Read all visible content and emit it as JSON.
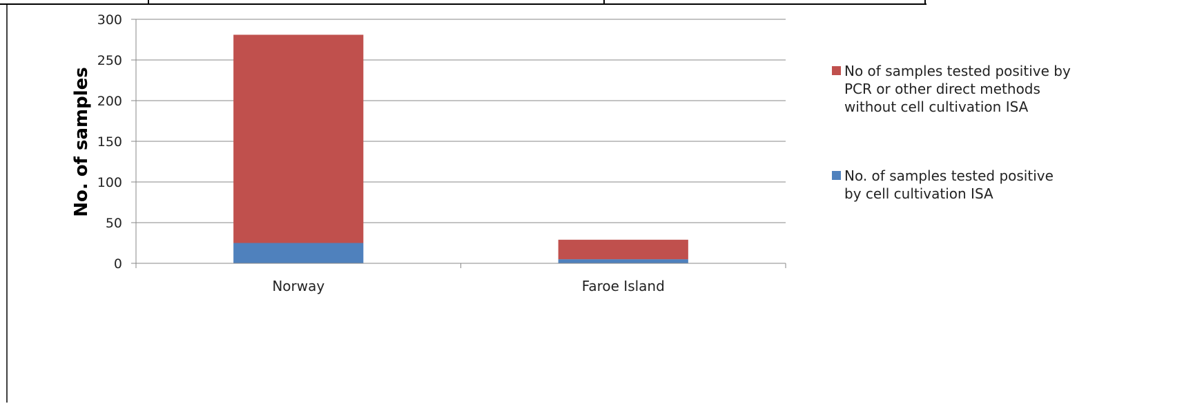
{
  "chart_data": {
    "type": "bar",
    "stacked": true,
    "categories": [
      "Norway",
      "Faroe Island"
    ],
    "series": [
      {
        "name": "No. of samples tested positive by cell cultivation ISA",
        "legend_lines": [
          "No. of samples tested positive",
          "by cell cultivation ISA"
        ],
        "color": "#4f81bd",
        "values": [
          25,
          5
        ]
      },
      {
        "name": "No of samples tested positive by PCR or other direct methods without cell cultivation ISA",
        "legend_lines": [
          "No of samples tested positive by",
          "PCR or other direct methods",
          "without cell cultivation ISA"
        ],
        "color": "#c0504d",
        "values": [
          256,
          24
        ]
      }
    ],
    "title": "",
    "xlabel": "",
    "ylabel": "No. of samples",
    "ylim": [
      0,
      300
    ],
    "yticks": [
      0,
      50,
      100,
      150,
      200,
      250,
      300
    ],
    "grid": true,
    "legend_position": "right"
  }
}
